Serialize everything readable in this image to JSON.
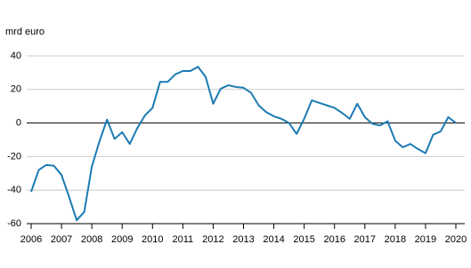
{
  "chart_data": {
    "type": "line",
    "y_label": "mrd euro",
    "x": [
      2006,
      2006.25,
      2006.5,
      2006.75,
      2007,
      2007.25,
      2007.5,
      2007.75,
      2008,
      2008.25,
      2008.5,
      2008.75,
      2009,
      2009.25,
      2009.5,
      2009.75,
      2010,
      2010.25,
      2010.5,
      2010.75,
      2011,
      2011.25,
      2011.5,
      2011.75,
      2012,
      2012.25,
      2012.5,
      2012.75,
      2013,
      2013.25,
      2013.5,
      2013.75,
      2014,
      2014.25,
      2014.5,
      2014.75,
      2015,
      2015.25,
      2015.5,
      2015.75,
      2016,
      2016.25,
      2016.5,
      2016.75,
      2017,
      2017.25,
      2017.5,
      2017.75,
      2018,
      2018.25,
      2018.5,
      2018.75,
      2019,
      2019.25,
      2019.5,
      2019.75,
      2020
    ],
    "series": [
      {
        "color": "#1b7bb3",
        "values": [
          -41,
          -28,
          -25,
          -25.5,
          -31,
          -44,
          -58,
          -53,
          -26,
          -11,
          2,
          -9.5,
          -5.5,
          -12.5,
          -3,
          4.5,
          9,
          24.5,
          24.5,
          29,
          31,
          31,
          33.5,
          27.5,
          11.5,
          20.5,
          22.5,
          21.5,
          21,
          18,
          10.5,
          6.5,
          4,
          2.5,
          0,
          -6.5,
          2.5,
          13.5,
          12,
          10.5,
          9,
          6,
          2.5,
          11.5,
          3.5,
          -0.5,
          -1.5,
          1,
          -10.5,
          -14.5,
          -12.5,
          -15.5,
          -18,
          -7,
          -5,
          3.5,
          0
        ]
      }
    ],
    "xlim": [
      2006,
      2020
    ],
    "xticks": [
      2006,
      2007,
      2008,
      2009,
      2010,
      2011,
      2012,
      2013,
      2014,
      2015,
      2016,
      2017,
      2018,
      2019,
      2020
    ],
    "ylim": [
      -60,
      40
    ],
    "yticks": [
      -60,
      -40,
      -20,
      0,
      20,
      40
    ],
    "grid": true
  }
}
